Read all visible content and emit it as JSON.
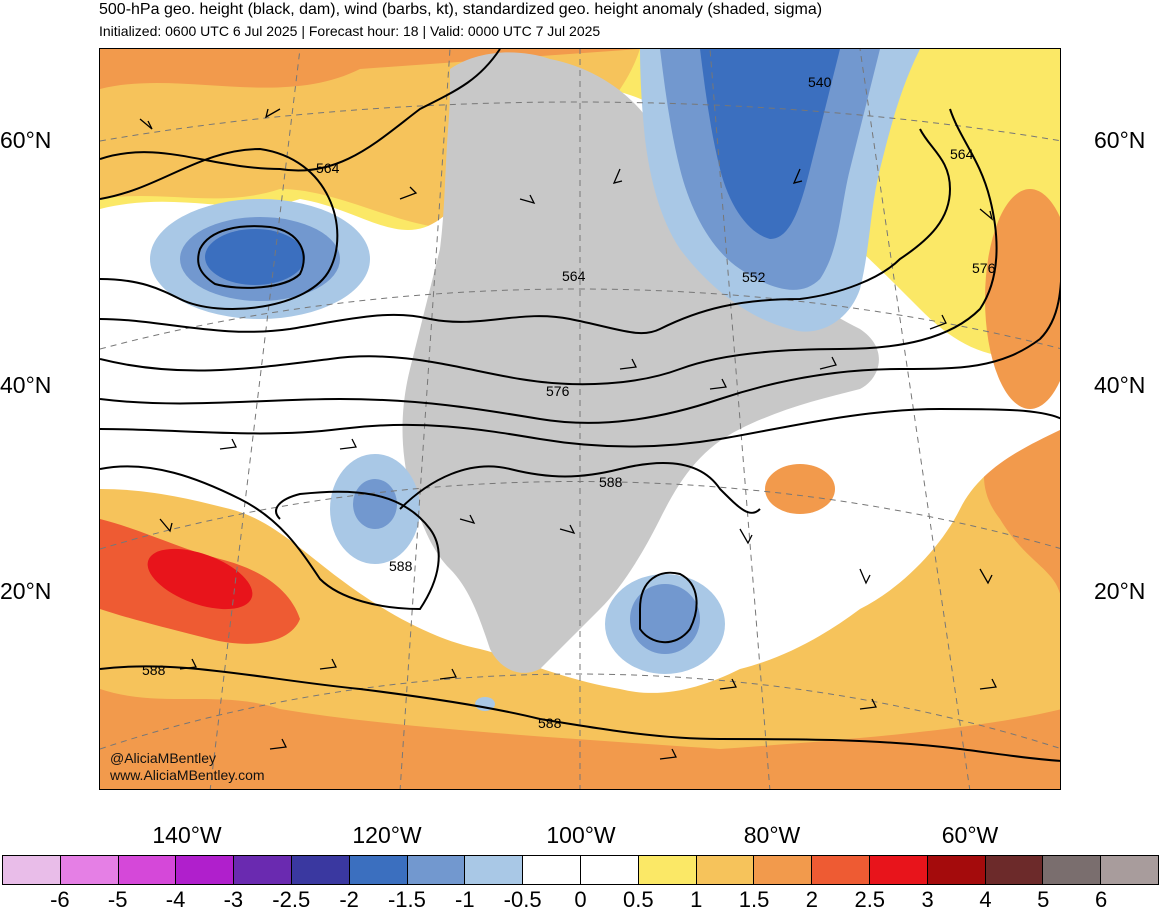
{
  "header": {
    "title": "500-hPa geo. height (black, dam), wind (barbs, kt), standardized geo. height anomaly (shaded, sigma)",
    "subtitle": "Initialized: 0600 UTC 6 Jul 2025 | Forecast hour: 18 | Valid: 0000 UTC 7 Jul 2025"
  },
  "map": {
    "lat_labels": [
      "60°N",
      "40°N",
      "20°N"
    ],
    "lon_labels": [
      "140°W",
      "120°W",
      "100°W",
      "80°W",
      "60°W"
    ],
    "contour_labels": [
      "540",
      "552",
      "564",
      "564",
      "564",
      "576",
      "576",
      "588",
      "588",
      "588",
      "588"
    ],
    "credit": {
      "handle": "@AliciaMBentley",
      "website": "www.AliciaMBentley.com"
    }
  },
  "colorbar": {
    "colors": [
      "#e9bde9",
      "#e57fe5",
      "#d548d9",
      "#b01fcc",
      "#6a2ab0",
      "#3a38a0",
      "#3b6fbf",
      "#7298cf",
      "#a9c8e6",
      "#ffffff",
      "#ffffff",
      "#fbe866",
      "#f6c35b",
      "#f29a4c",
      "#ee5b33",
      "#e8141b",
      "#a40b0c",
      "#6c2a2a",
      "#7a6e6e",
      "#a89c9c"
    ],
    "ticks": [
      "-6",
      "-5",
      "-4",
      "-3",
      "-2.5",
      "-2",
      "-1.5",
      "-1",
      "-0.5",
      "0",
      "0.5",
      "1",
      "1.5",
      "2",
      "2.5",
      "3",
      "4",
      "5",
      "6"
    ]
  }
}
